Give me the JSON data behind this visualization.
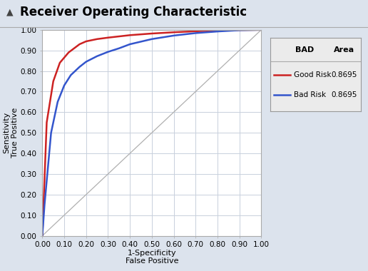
{
  "title": "Receiver Operating Characteristic",
  "xlabel": "1-Specificity\nFalse Positive",
  "ylabel": "Sensitivity\nTrue Positive",
  "background_color": "#dce3ed",
  "plot_bg_color": "#ffffff",
  "grid_color": "#c8d0dc",
  "legend": {
    "header_col1": "BAD",
    "header_col2": "Area",
    "entries": [
      {
        "label": "Good Risk",
        "color": "#cc2222",
        "area": "0.8695"
      },
      {
        "label": "Bad Risk",
        "color": "#3355cc",
        "area": "0.8695"
      }
    ]
  },
  "good_risk_fpr": [
    0.0,
    0.02,
    0.05,
    0.08,
    0.12,
    0.17,
    0.2,
    0.25,
    0.3,
    0.35,
    0.4,
    0.5,
    0.6,
    0.7,
    0.8,
    0.9,
    1.0
  ],
  "good_risk_tpr": [
    0.0,
    0.55,
    0.75,
    0.84,
    0.89,
    0.93,
    0.944,
    0.955,
    0.962,
    0.968,
    0.974,
    0.982,
    0.988,
    0.993,
    0.997,
    0.999,
    1.0
  ],
  "bad_risk_fpr": [
    0.0,
    0.01,
    0.04,
    0.07,
    0.1,
    0.13,
    0.17,
    0.2,
    0.25,
    0.3,
    0.35,
    0.4,
    0.5,
    0.6,
    0.7,
    0.8,
    0.9,
    1.0
  ],
  "bad_risk_tpr": [
    0.0,
    0.15,
    0.5,
    0.65,
    0.73,
    0.78,
    0.82,
    0.845,
    0.872,
    0.893,
    0.91,
    0.93,
    0.955,
    0.972,
    0.984,
    0.992,
    0.998,
    1.0
  ],
  "diagonal": [
    0.0,
    1.0
  ],
  "xlim": [
    0.0,
    1.0
  ],
  "ylim": [
    0.0,
    1.0
  ],
  "xticks": [
    0.0,
    0.1,
    0.2,
    0.3,
    0.4,
    0.5,
    0.6,
    0.7,
    0.8,
    0.9,
    1.0
  ],
  "yticks": [
    0.0,
    0.1,
    0.2,
    0.3,
    0.4,
    0.5,
    0.6,
    0.7,
    0.8,
    0.9,
    1.0
  ],
  "title_fontsize": 12,
  "axis_label_fontsize": 8,
  "tick_fontsize": 7.5,
  "line_width": 1.8
}
